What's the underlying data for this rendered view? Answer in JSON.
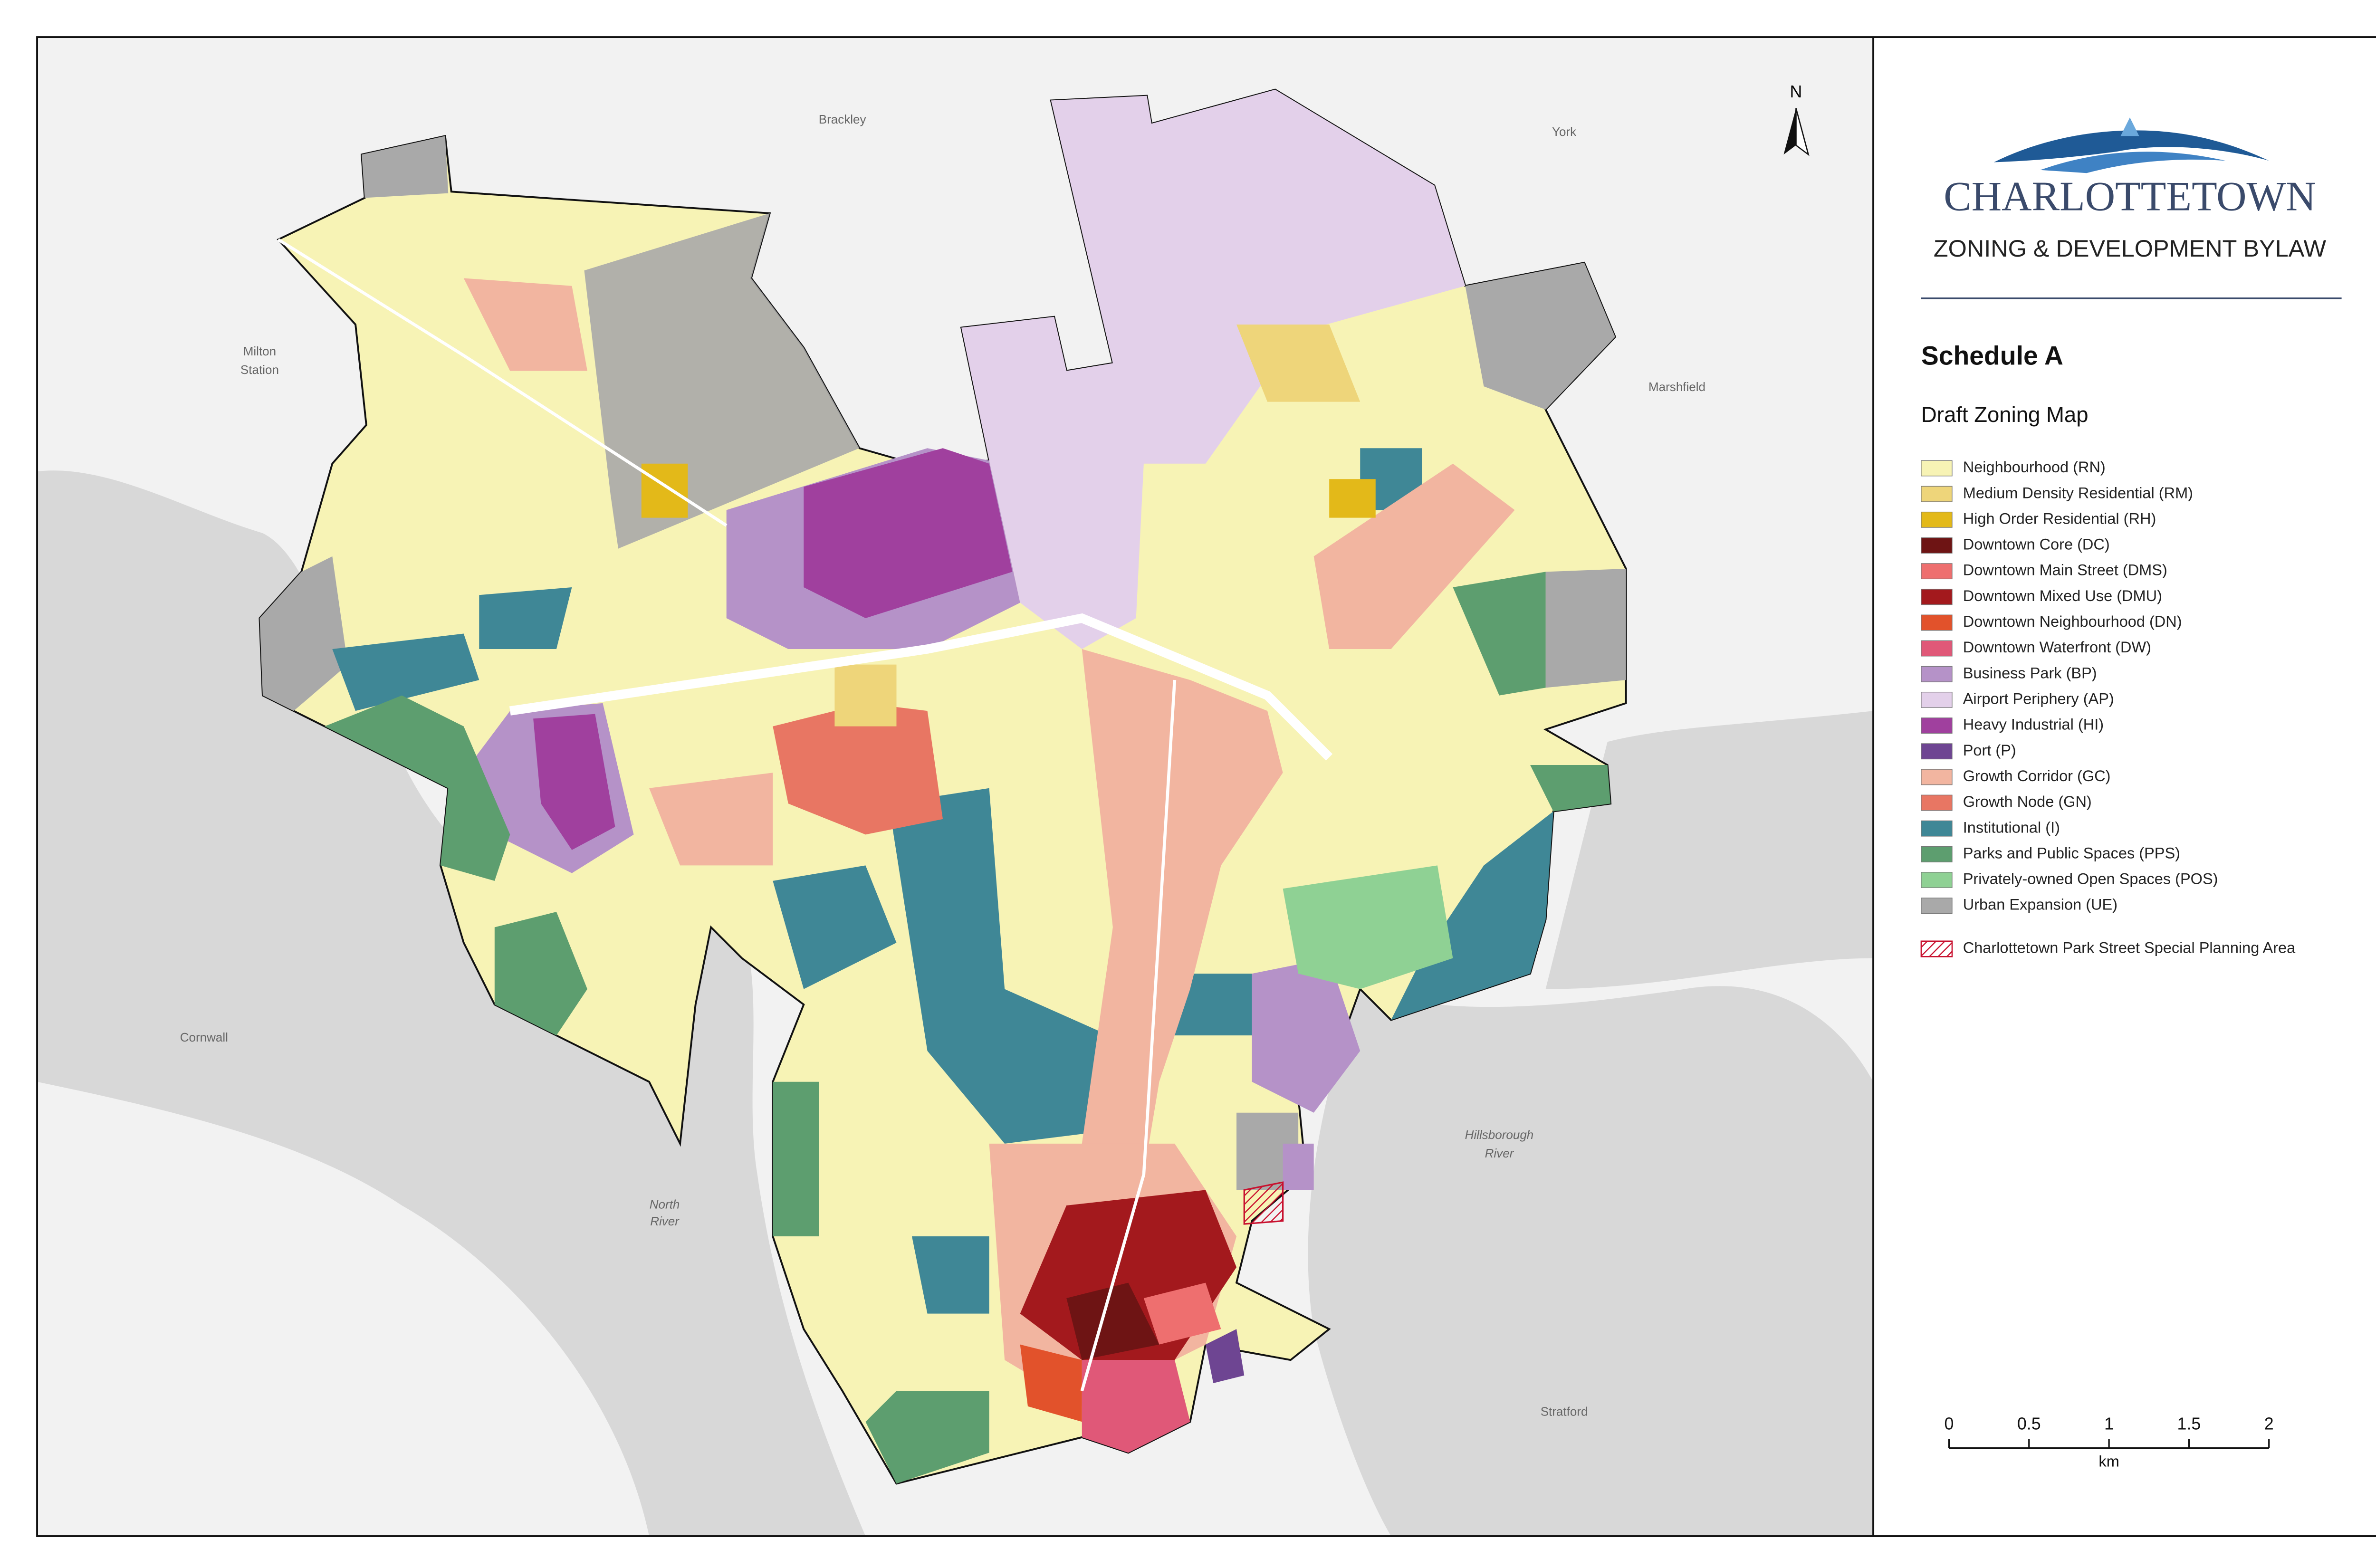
{
  "places": [
    {
      "lines": [
        "Brackley"
      ]
    },
    {
      "lines": [
        "York"
      ]
    },
    {
      "lines": [
        "Milton",
        "Station"
      ]
    },
    {
      "lines": [
        "Marshfield"
      ]
    },
    {
      "lines": [
        "Cornwall"
      ]
    },
    {
      "lines": [
        "North",
        "River"
      ]
    },
    {
      "lines": [
        "Hillsborough",
        "River"
      ]
    },
    {
      "lines": [
        "Stratford"
      ]
    }
  ],
  "north": "N",
  "header": {
    "logo": "CHARLOTTETOWN",
    "subtitle": "ZONING & DEVELOPMENT BYLAW"
  },
  "schedule": "Schedule A",
  "map_title": "Draft Zoning Map",
  "legend": {
    "items": [
      {
        "label": "Neighbourhood (RN)",
        "color": "#f7f3b5"
      },
      {
        "label": "Medium Density Residential (RM)",
        "color": "#eed57a"
      },
      {
        "label": "High Order Residential (RH)",
        "color": "#e3b919"
      },
      {
        "label": "Downtown Core (DC)",
        "color": "#6e1414"
      },
      {
        "label": "Downtown Main Street (DMS)",
        "color": "#ee6f6f"
      },
      {
        "label": "Downtown Mixed Use (DMU)",
        "color": "#a3191d"
      },
      {
        "label": "Downtown Neighbourhood (DN)",
        "color": "#e2522b"
      },
      {
        "label": "Downtown Waterfront (DW)",
        "color": "#e05878"
      },
      {
        "label": "Business Park (BP)",
        "color": "#b592c8"
      },
      {
        "label": "Airport Periphery (AP)",
        "color": "#e3d0ea"
      },
      {
        "label": "Heavy Industrial (HI)",
        "color": "#a0409e"
      },
      {
        "label": "Port (P)",
        "color": "#6e4592"
      },
      {
        "label": "Growth Corridor (GC)",
        "color": "#f2b5a0"
      },
      {
        "label": "Growth Node (GN)",
        "color": "#e87663"
      },
      {
        "label": "Institutional (I)",
        "color": "#3f8796"
      },
      {
        "label": "Parks and Public Spaces (PPS)",
        "color": "#5d9e6f"
      },
      {
        "label": "Privately-owned Open Spaces (POS)",
        "color": "#8fd194"
      },
      {
        "label": "Urban Expansion (UE)",
        "color": "#a9a9a9"
      }
    ],
    "special_area": {
      "label": "Charlottetown Park Street Special Planning Area",
      "color": "#c8102e"
    }
  },
  "scale_bar": {
    "ticks": [
      0,
      0.5,
      1,
      1.5,
      2
    ],
    "unit": "km"
  }
}
